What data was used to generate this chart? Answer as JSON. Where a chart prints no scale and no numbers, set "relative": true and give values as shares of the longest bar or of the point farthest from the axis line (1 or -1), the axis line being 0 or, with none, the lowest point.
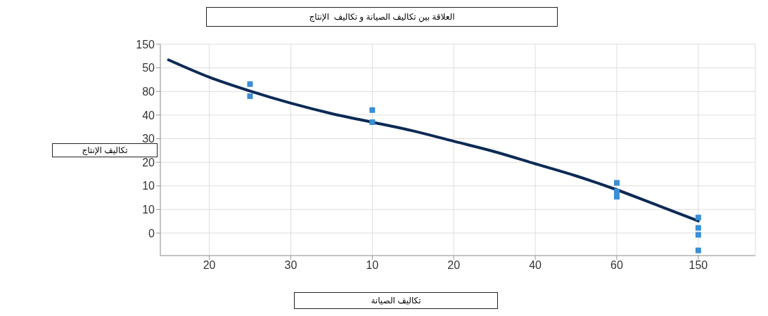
{
  "chart_data": {
    "type": "scatter",
    "title": "العلاقة بين تكاليف الصيانة و تكاليف  الإنتاج",
    "xlabel": "تكاليف الصيانة",
    "ylabel": "تكاليف الإنتاج",
    "relative": true,
    "categories": [
      null,
      "20",
      null,
      "30",
      null,
      "10",
      null,
      "20",
      null,
      "40",
      null,
      "60",
      null,
      "150",
      null
    ],
    "annotations": [
      "0",
      "10",
      "10",
      "20",
      "30",
      "40",
      "80",
      "50",
      "150"
    ],
    "grid": true,
    "series": [
      {
        "color": "#3a8fd6",
        "marker": "square",
        "values": [
          null,
          null,
          0.86,
          null,
          null,
          0.71,
          null,
          null,
          null,
          null,
          null,
          0.29,
          null,
          0.09,
          null
        ]
      },
      {
        "color": "#3a8fd6",
        "marker": "square",
        "values": [
          null,
          null,
          0.79,
          null,
          null,
          0.64,
          null,
          null,
          null,
          null,
          null,
          0.24,
          null,
          0.03,
          null
        ]
      },
      {
        "color": "#3a8fd6",
        "marker": "square",
        "values": [
          null,
          null,
          null,
          null,
          null,
          null,
          null,
          null,
          null,
          null,
          null,
          0.21,
          null,
          -0.01,
          null
        ]
      },
      {
        "color": "#3a8fd6",
        "marker": "square",
        "values": [
          null,
          null,
          null,
          null,
          null,
          null,
          null,
          null,
          null,
          null,
          null,
          null,
          null,
          -0.1,
          null
        ]
      },
      {
        "type": "line",
        "color": "#0d2a55",
        "marker": "none",
        "values": [
          1,
          0.9,
          0.82,
          0.75,
          0.69,
          0.64,
          0.59,
          0.53,
          0.47,
          0.4,
          0.33,
          0.25,
          0.16,
          0.07,
          null
        ]
      }
    ]
  }
}
